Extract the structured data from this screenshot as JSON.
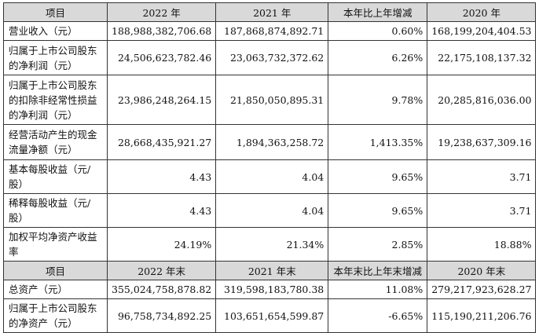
{
  "table": {
    "header1": [
      "项目",
      "2022 年",
      "2021 年",
      "本年比上年增减",
      "2020 年"
    ],
    "rows1": [
      {
        "label": "营业收入（元）",
        "cells": [
          "188,988,382,706.68",
          "187,868,874,892.71",
          "0.60%",
          "168,199,204,404.53"
        ]
      },
      {
        "label": "归属于上市公司股东的净利润（元）",
        "cells": [
          "24,506,623,782.46",
          "23,063,732,372.62",
          "6.26%",
          "22,175,108,137.32"
        ]
      },
      {
        "label": "归属于上市公司股东的扣除非经常性损益的净利润（元）",
        "cells": [
          "23,986,248,264.15",
          "21,850,050,895.31",
          "9.78%",
          "20,285,816,036.00"
        ]
      },
      {
        "label": "经营活动产生的现金流量净额（元）",
        "cells": [
          "28,668,435,921.27",
          "1,894,363,258.72",
          "1,413.35%",
          "19,238,637,309.16"
        ]
      },
      {
        "label": "基本每股收益（元/股）",
        "cells": [
          "4.43",
          "4.04",
          "9.65%",
          "3.71"
        ]
      },
      {
        "label": "稀释每股收益（元/股）",
        "cells": [
          "4.43",
          "4.04",
          "9.65%",
          "3.71"
        ]
      },
      {
        "label": "加权平均净资产收益率",
        "cells": [
          "24.19%",
          "21.34%",
          "2.85%",
          "18.88%"
        ]
      }
    ],
    "header2": [
      "项目",
      "2022 年末",
      "2021 年末",
      "本年末比上年末增减",
      "2020 年末"
    ],
    "rows2": [
      {
        "label": "总资产（元）",
        "cells": [
          "355,024,758,878.82",
          "319,598,183,780.38",
          "11.08%",
          "279,217,923,628.27"
        ]
      },
      {
        "label": "归属于上市公司股东的净资产（元）",
        "cells": [
          "96,758,734,892.25",
          "103,651,654,599.87",
          "-6.65%",
          "115,190,211,206.76"
        ]
      }
    ]
  }
}
